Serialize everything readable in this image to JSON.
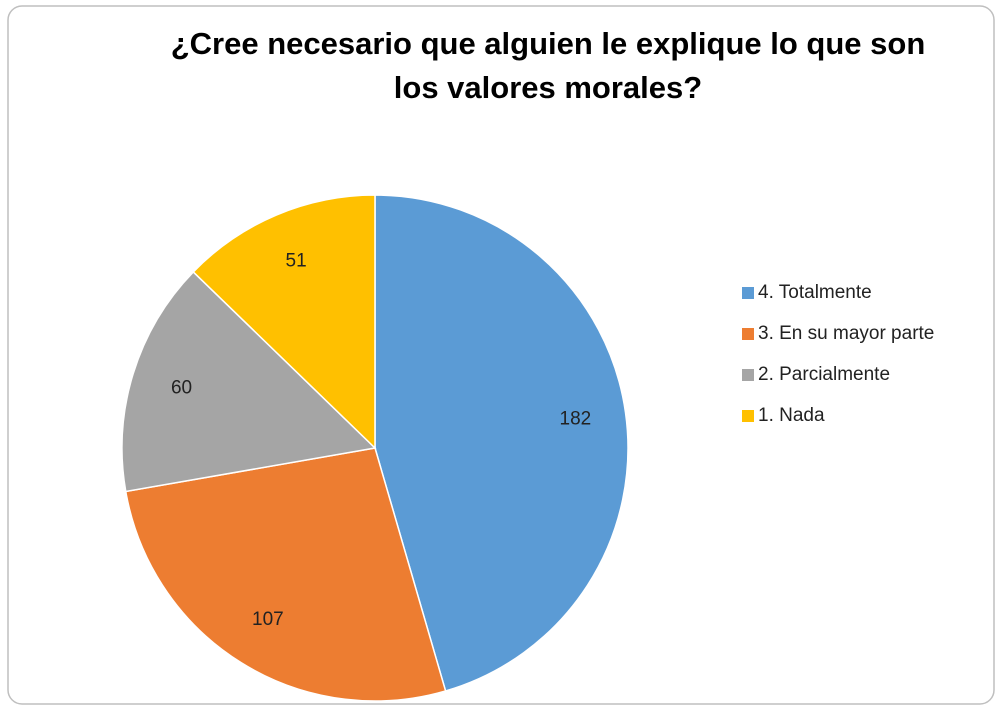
{
  "chart_data": {
    "type": "pie",
    "title": "¿Cree necesario que alguien le explique lo que son los valores morales?",
    "categories": [
      "4. Totalmente",
      "3. En su mayor parte",
      "2. Parcialmente",
      "1. Nada"
    ],
    "values": [
      182,
      107,
      60,
      51
    ],
    "colors": [
      "#5b9bd5",
      "#ed7d31",
      "#a5a5a5",
      "#ffc000"
    ],
    "legend": "right"
  }
}
